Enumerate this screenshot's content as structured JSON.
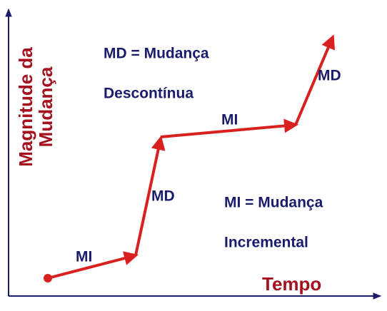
{
  "axes": {
    "y_label": [
      "Magnitude da",
      "Mudança"
    ],
    "x_label": "Tempo"
  },
  "segment_labels": [
    "MI",
    "MD",
    "MI",
    "MD"
  ],
  "notes": [
    "MD = Mudança",
    "Descontínua",
    "MI = Mudança",
    "Incremental"
  ]
}
